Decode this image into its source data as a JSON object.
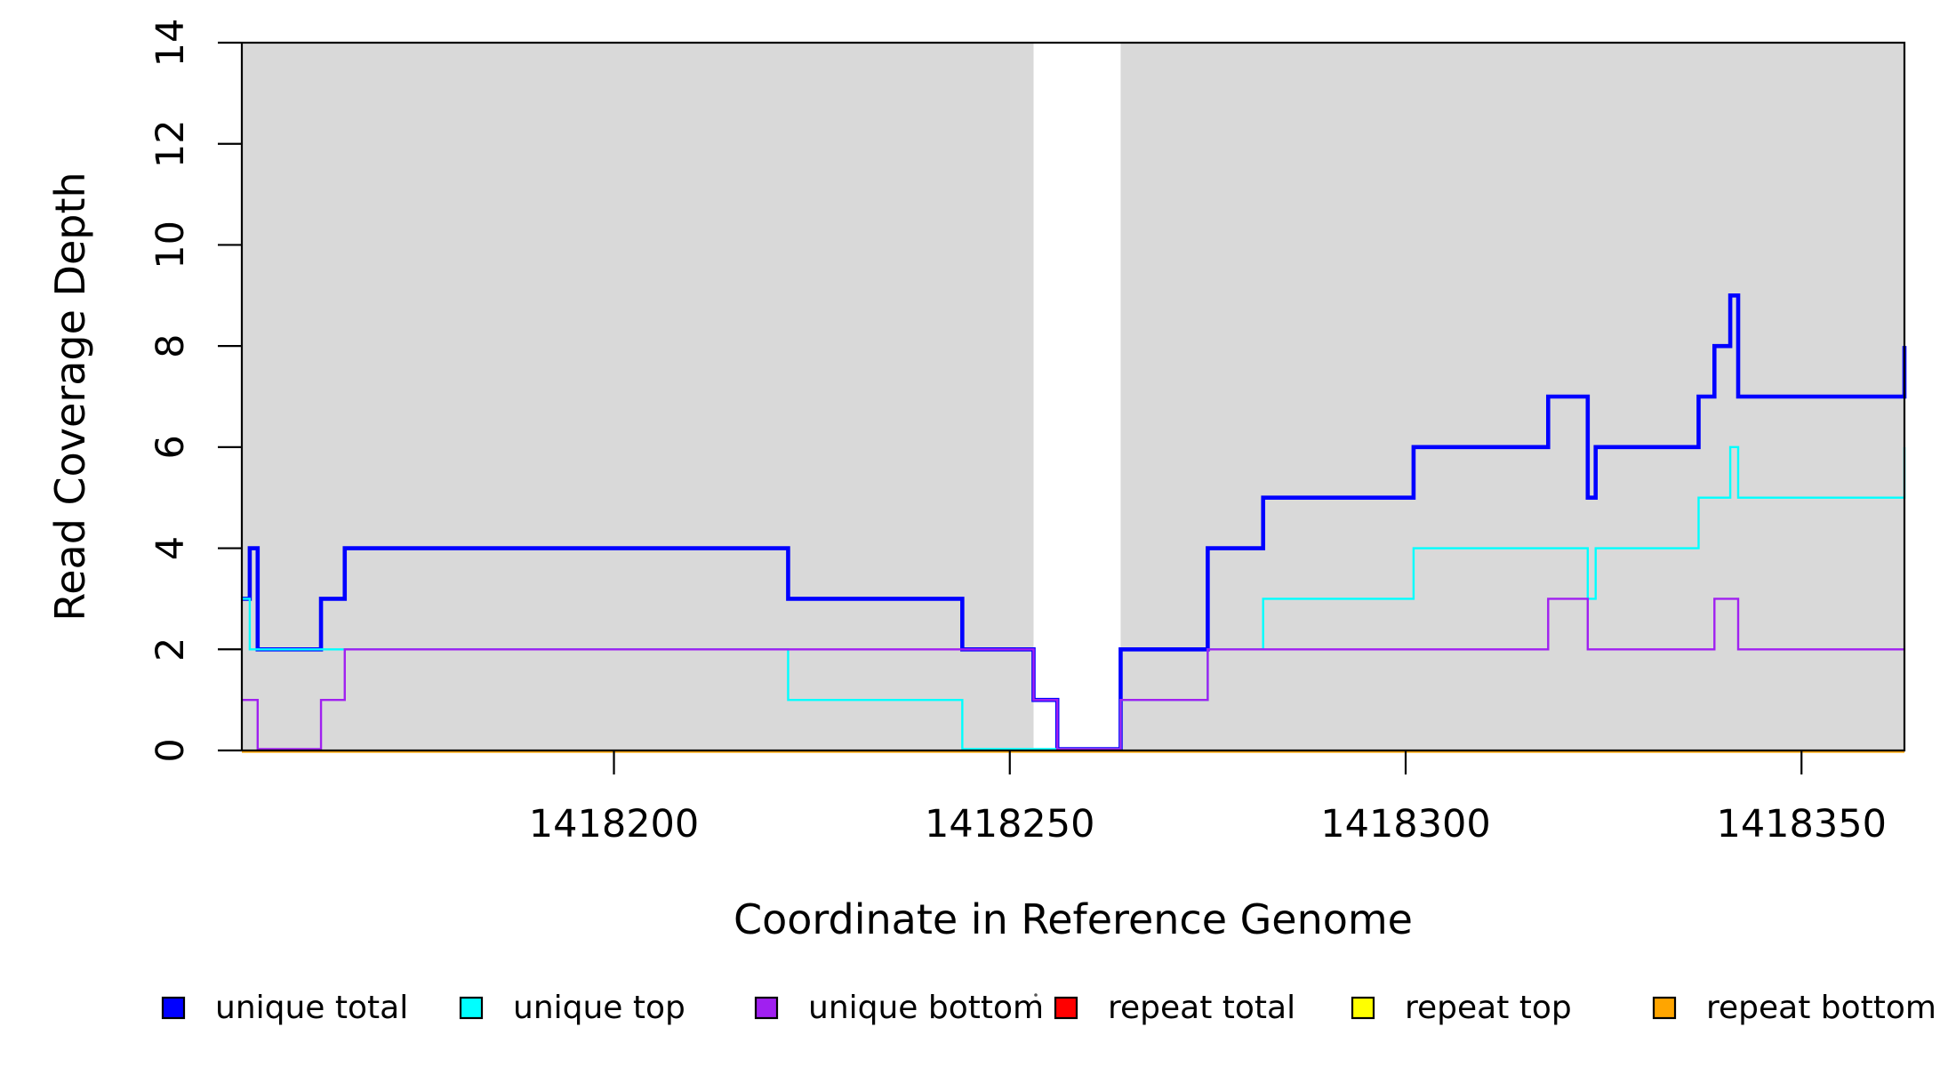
{
  "figure": {
    "xlabel": "Coordinate in Reference Genome",
    "ylabel": "Read Coverage Depth"
  },
  "chart_data": {
    "type": "line",
    "subtype": "step-post",
    "title": "",
    "xlabel": "Coordinate in Reference Genome",
    "ylabel": "Read Coverage Depth",
    "xlim": [
      1418153,
      1418363
    ],
    "ylim": [
      0,
      14
    ],
    "x_ticks": [
      1418200,
      1418250,
      1418300,
      1418350
    ],
    "y_ticks": [
      0,
      2,
      4,
      6,
      8,
      10,
      12,
      14
    ],
    "grid": false,
    "legend_position": "bottom",
    "background_bands": {
      "color": "#D9D9D9",
      "ranges": [
        [
          1418153,
          1418253
        ],
        [
          1418264,
          1418363
        ]
      ]
    },
    "series": [
      {
        "name": "unique total",
        "color": "#0000FF",
        "line_width": 4.6,
        "group": "unique",
        "points": [
          [
            1418153,
            3
          ],
          [
            1418154,
            4
          ],
          [
            1418155,
            2
          ],
          [
            1418163,
            3
          ],
          [
            1418166,
            4
          ],
          [
            1418222,
            3
          ],
          [
            1418244,
            2
          ],
          [
            1418253,
            1
          ],
          [
            1418256,
            0
          ],
          [
            1418264,
            2
          ],
          [
            1418275,
            4
          ],
          [
            1418282,
            5
          ],
          [
            1418301,
            6
          ],
          [
            1418318,
            7
          ],
          [
            1418323,
            5
          ],
          [
            1418324,
            6
          ],
          [
            1418337,
            7
          ],
          [
            1418339,
            8
          ],
          [
            1418341,
            9
          ],
          [
            1418342,
            7
          ],
          [
            1418363,
            8
          ]
        ]
      },
      {
        "name": "unique top",
        "color": "#00FFFF",
        "line_width": 2.4,
        "group": "unique",
        "points": [
          [
            1418153,
            3
          ],
          [
            1418154,
            2
          ],
          [
            1418222,
            1
          ],
          [
            1418244,
            0
          ],
          [
            1418264,
            1
          ],
          [
            1418275,
            2
          ],
          [
            1418282,
            3
          ],
          [
            1418301,
            4
          ],
          [
            1418323,
            3
          ],
          [
            1418324,
            4
          ],
          [
            1418337,
            5
          ],
          [
            1418341,
            6
          ],
          [
            1418342,
            5
          ],
          [
            1418363,
            6
          ]
        ]
      },
      {
        "name": "unique bottom",
        "color": "#A020F0",
        "line_width": 2.4,
        "group": "unique",
        "points": [
          [
            1418153,
            1
          ],
          [
            1418155,
            0
          ],
          [
            1418163,
            1
          ],
          [
            1418166,
            2
          ],
          [
            1418253,
            1
          ],
          [
            1418256,
            0
          ],
          [
            1418264,
            1
          ],
          [
            1418275,
            2
          ],
          [
            1418318,
            3
          ],
          [
            1418323,
            2
          ],
          [
            1418339,
            3
          ],
          [
            1418342,
            2
          ],
          [
            1418363,
            2
          ]
        ]
      },
      {
        "name": "repeat total",
        "color": "#FF0000",
        "line_width": 2.4,
        "group": "repeat",
        "points": [
          [
            1418153,
            0
          ],
          [
            1418363,
            0
          ]
        ]
      },
      {
        "name": "repeat top",
        "color": "#FFFF00",
        "line_width": 2.4,
        "group": "repeat",
        "points": [
          [
            1418153,
            0
          ],
          [
            1418363,
            0
          ]
        ]
      },
      {
        "name": "repeat bottom",
        "color": "#FFA500",
        "line_width": 3.2,
        "group": "repeat",
        "points": [
          [
            1418153,
            0
          ],
          [
            1418363,
            0
          ]
        ]
      }
    ]
  }
}
